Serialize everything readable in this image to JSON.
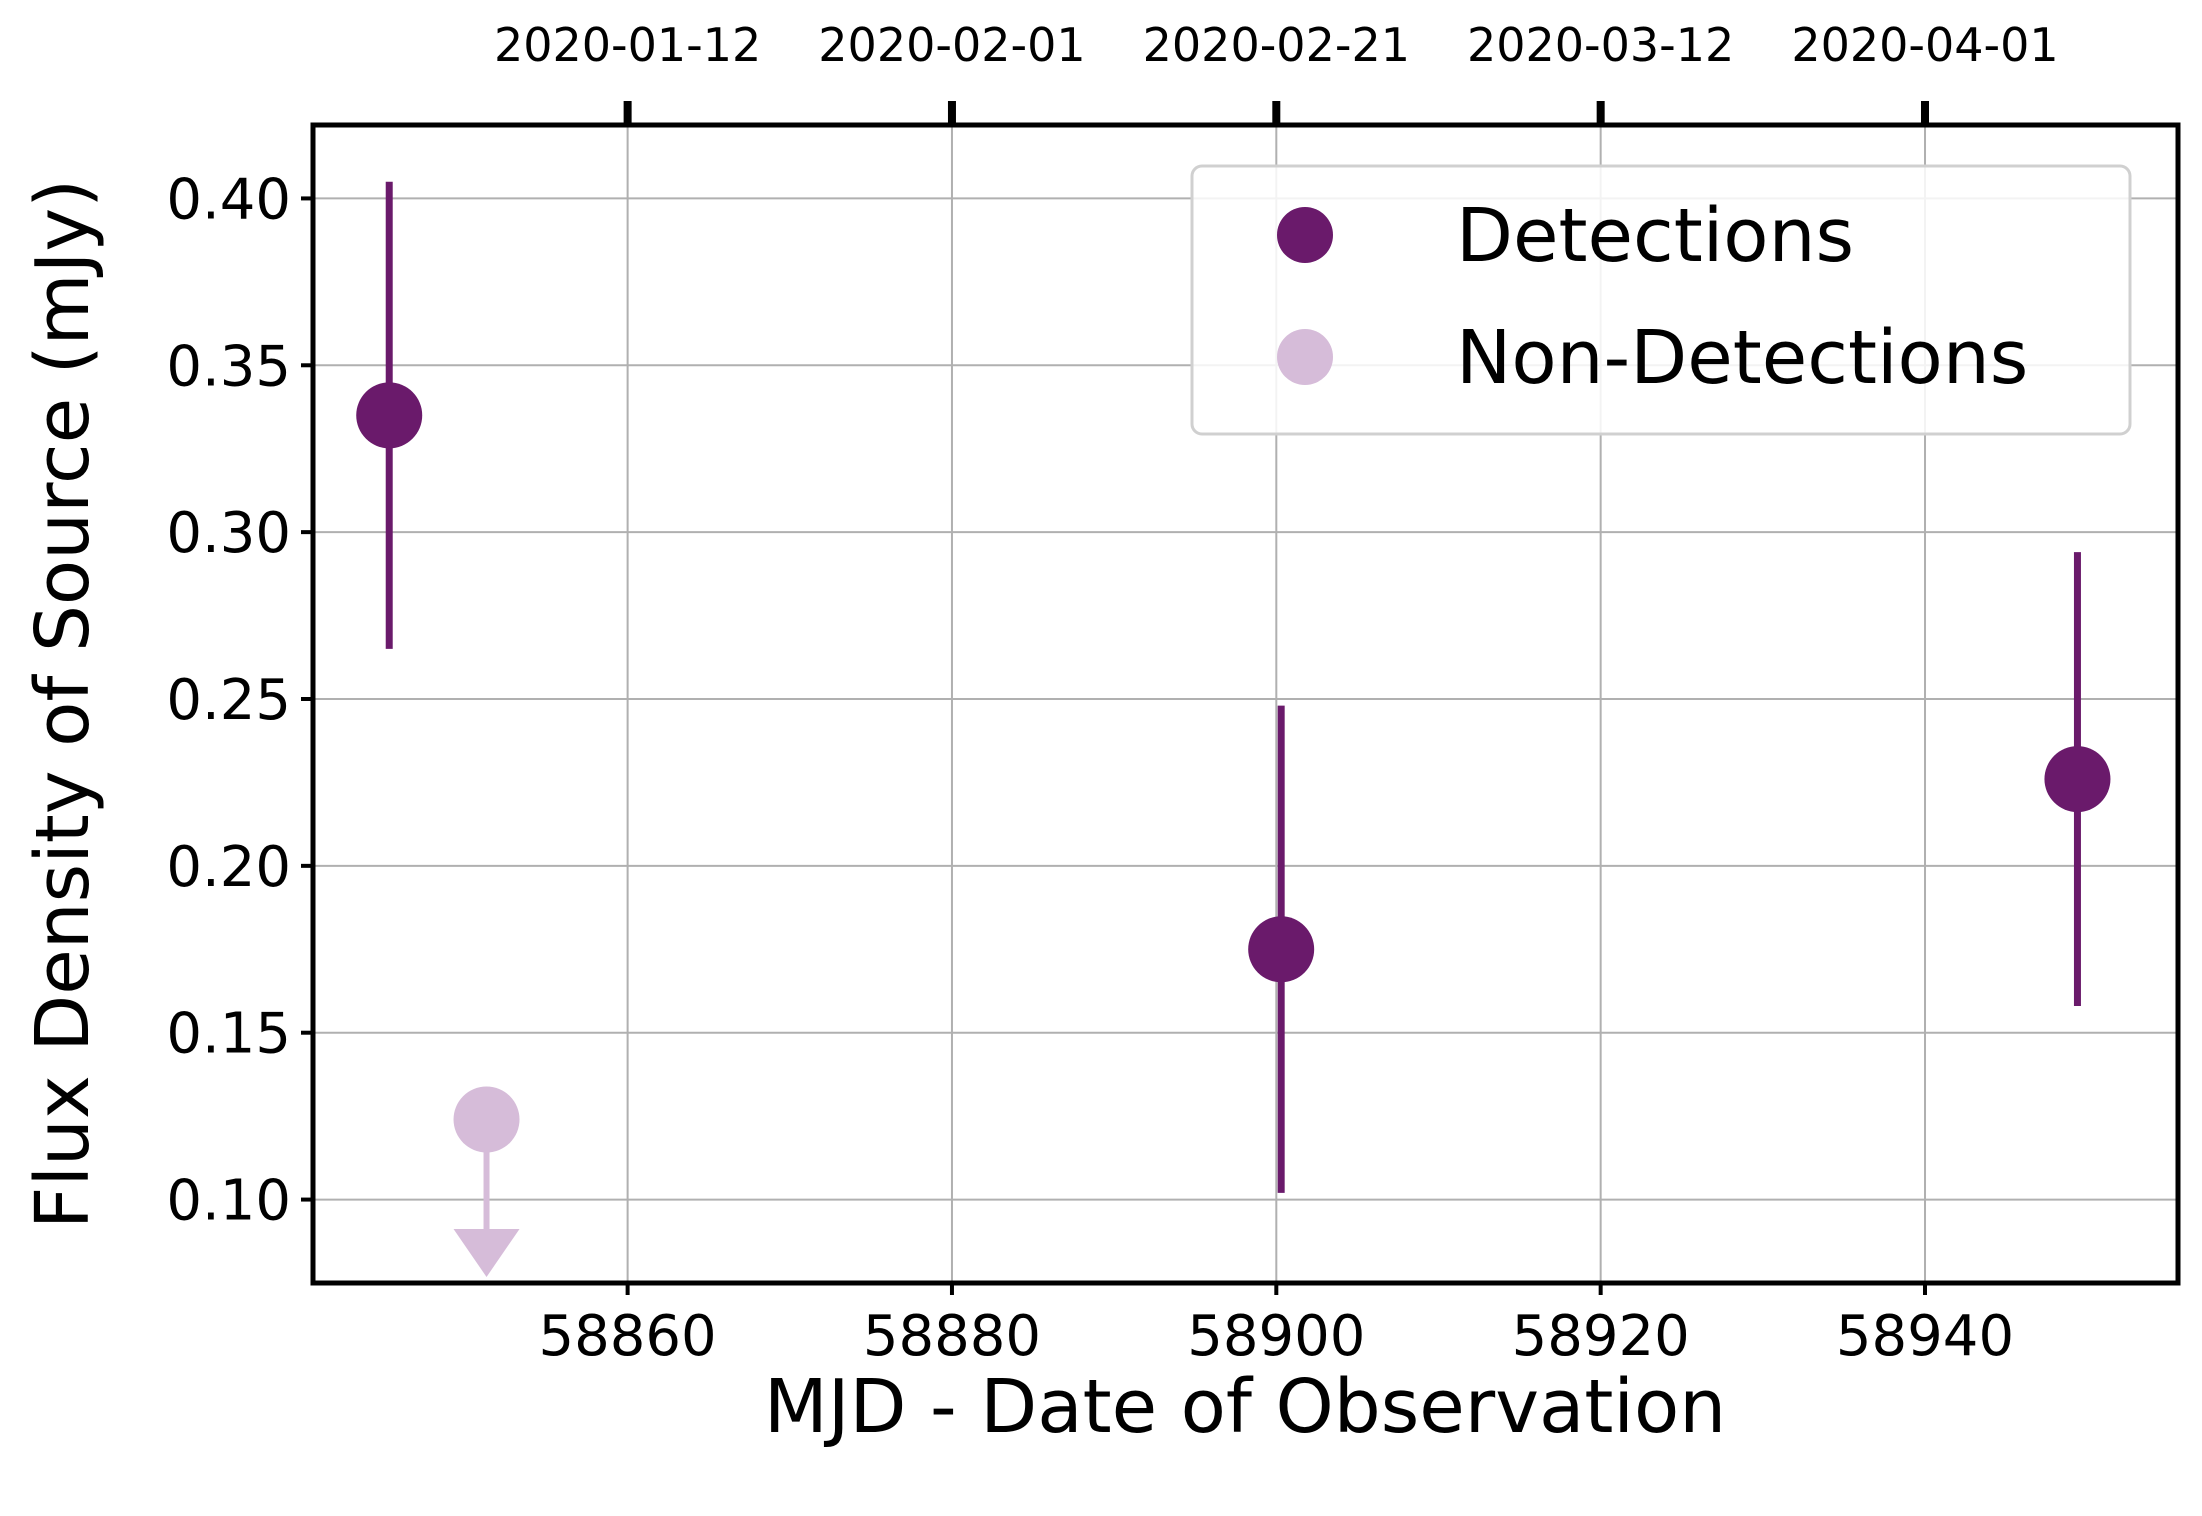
{
  "chart_data": {
    "type": "scatter",
    "title": "",
    "xlabel": "MJD - Date of Observation",
    "ylabel": "Flux Density of Source (mJy)",
    "xlim": [
      58840.6,
      58955.6
    ],
    "ylim": [
      0.075,
      0.422
    ],
    "x_ticks": [
      58860,
      58880,
      58900,
      58920,
      58940
    ],
    "y_ticks": [
      0.1,
      0.15,
      0.2,
      0.25,
      0.3,
      0.35,
      0.4
    ],
    "y_tick_labels": [
      "0.10",
      "0.15",
      "0.20",
      "0.25",
      "0.30",
      "0.35",
      "0.40"
    ],
    "top_axis": {
      "ticks_mjd": [
        58860,
        58880,
        58900,
        58920,
        58940
      ],
      "labels": [
        "2020-01-12",
        "2020-02-01",
        "2020-02-21",
        "2020-03-12",
        "2020-04-01"
      ]
    },
    "grid": true,
    "legend_position": "top-right",
    "series": [
      {
        "name": "Detections",
        "color": "#6a1a6b",
        "marker": "circle",
        "points": [
          {
            "x": 58845.3,
            "y": 0.335,
            "yerr_low": 0.265,
            "yerr_high": 0.405
          },
          {
            "x": 58900.3,
            "y": 0.175,
            "yerr_low": 0.102,
            "yerr_high": 0.248
          },
          {
            "x": 58949.4,
            "y": 0.226,
            "yerr_low": 0.158,
            "yerr_high": 0.294
          }
        ]
      },
      {
        "name": "Non-Detections",
        "color": "#d6bcd9",
        "marker": "circle",
        "upper_limit": true,
        "points": [
          {
            "x": 58851.3,
            "y": 0.124
          }
        ]
      }
    ]
  }
}
